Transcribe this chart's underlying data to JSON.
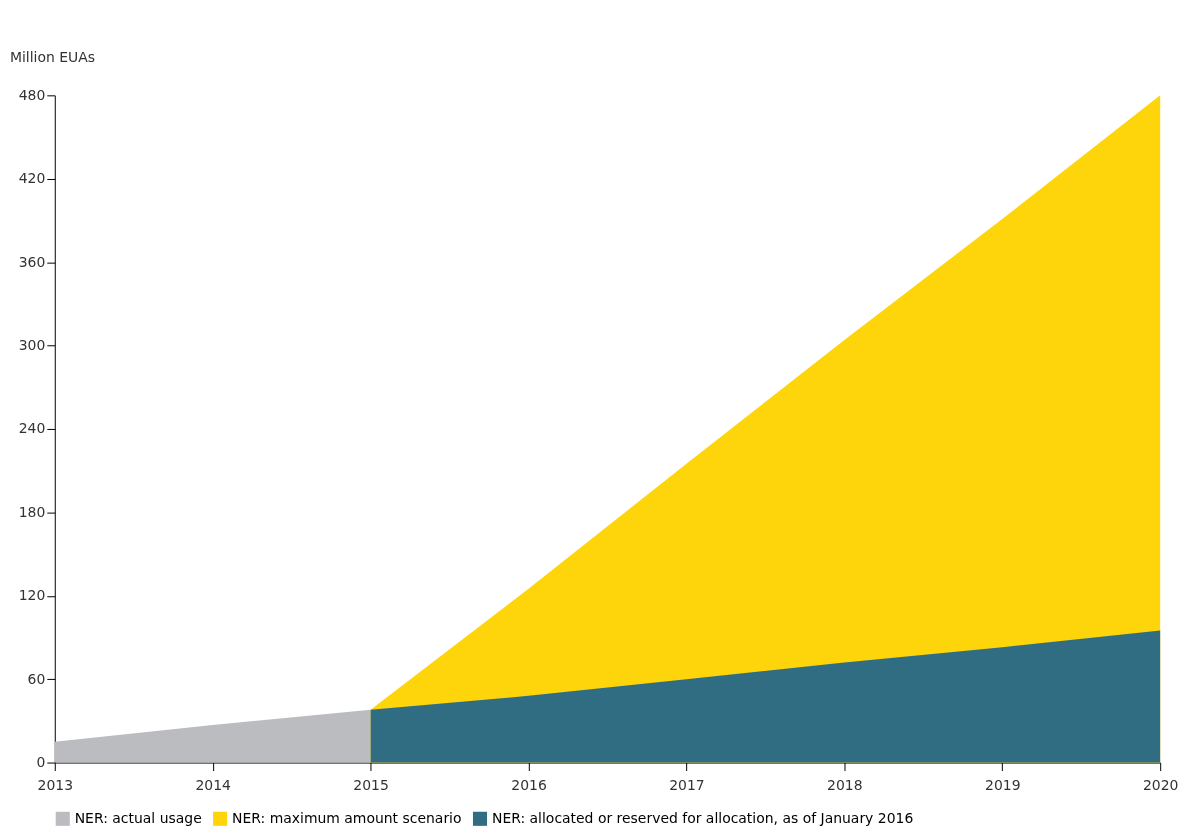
{
  "chart_data": {
    "type": "area",
    "ylabel": "Million EUAs",
    "series": [
      {
        "name": "NER: actual usage",
        "color": "#bbbcc0",
        "x": [
          2013,
          2014,
          2015
        ],
        "values": [
          15,
          27,
          38
        ]
      },
      {
        "name": "NER: maximum amount scenario",
        "color": "#fdd50a",
        "x": [
          2015,
          2016,
          2017,
          2018,
          2019,
          2020
        ],
        "values": [
          38,
          125,
          215,
          304,
          391,
          480
        ]
      },
      {
        "name": "NER: allocated or reserved for allocation, as of January 2016",
        "color": "#306d82",
        "x": [
          2015,
          2016,
          2017,
          2018,
          2019,
          2020
        ],
        "values": [
          38,
          48,
          60,
          72,
          83,
          95
        ]
      }
    ],
    "xlim": [
      2013,
      2020
    ],
    "xticks": [
      2013,
      2014,
      2015,
      2016,
      2017,
      2018,
      2019,
      2020
    ],
    "ylim": [
      0,
      480
    ],
    "yticks": [
      0,
      60,
      120,
      180,
      240,
      300,
      360,
      420,
      480
    ],
    "grid": false,
    "legend": "bottom"
  }
}
